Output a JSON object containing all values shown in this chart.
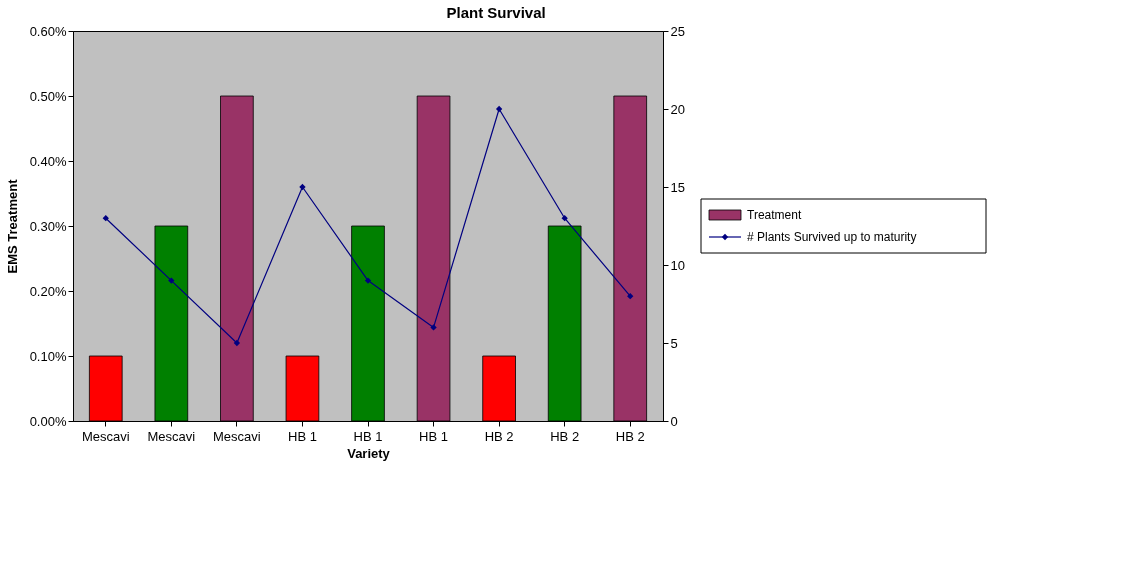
{
  "chart_data": {
    "type": "bar",
    "title": "Plant Survival",
    "xlabel": "Variety",
    "ylabel": "EMS Treatment",
    "categories": [
      "Mescavi",
      "Mescavi",
      "Mescavi",
      "HB 1",
      "HB 1",
      "HB 1",
      "HB 2",
      "HB 2",
      "HB 2"
    ],
    "series": [
      {
        "name": "Treatment",
        "color": "#993366",
        "colors": [
          "#ff0000",
          "#008000",
          "#993366",
          "#ff0000",
          "#008000",
          "#993366",
          "#ff0000",
          "#008000",
          "#993366"
        ],
        "values": [
          0.1,
          0.3,
          0.5,
          0.1,
          0.3,
          0.5,
          0.1,
          0.3,
          0.5
        ]
      },
      {
        "name": "# Plants Survived up to maturity",
        "type": "line",
        "axis": "y2",
        "color": "#000080",
        "values": [
          13,
          9,
          5,
          15,
          9,
          6,
          20,
          13,
          8
        ]
      }
    ],
    "ylim": [
      0,
      0.6
    ],
    "yticks": [
      {
        "value": 0,
        "label": "0.00%"
      },
      {
        "value": 0.1,
        "label": "0.10%"
      },
      {
        "value": 0.2,
        "label": "0.20%"
      },
      {
        "value": 0.3,
        "label": "0.30%"
      },
      {
        "value": 0.4,
        "label": "0.40%"
      },
      {
        "value": 0.5,
        "label": "0.50%"
      },
      {
        "value": 0.6,
        "label": "0.60%"
      }
    ],
    "y2lim": [
      0,
      25
    ],
    "y2ticks": [
      0,
      5,
      10,
      15,
      20,
      25
    ],
    "grid": false,
    "legend": "right",
    "marker": "diamond",
    "line_style": "solid"
  }
}
